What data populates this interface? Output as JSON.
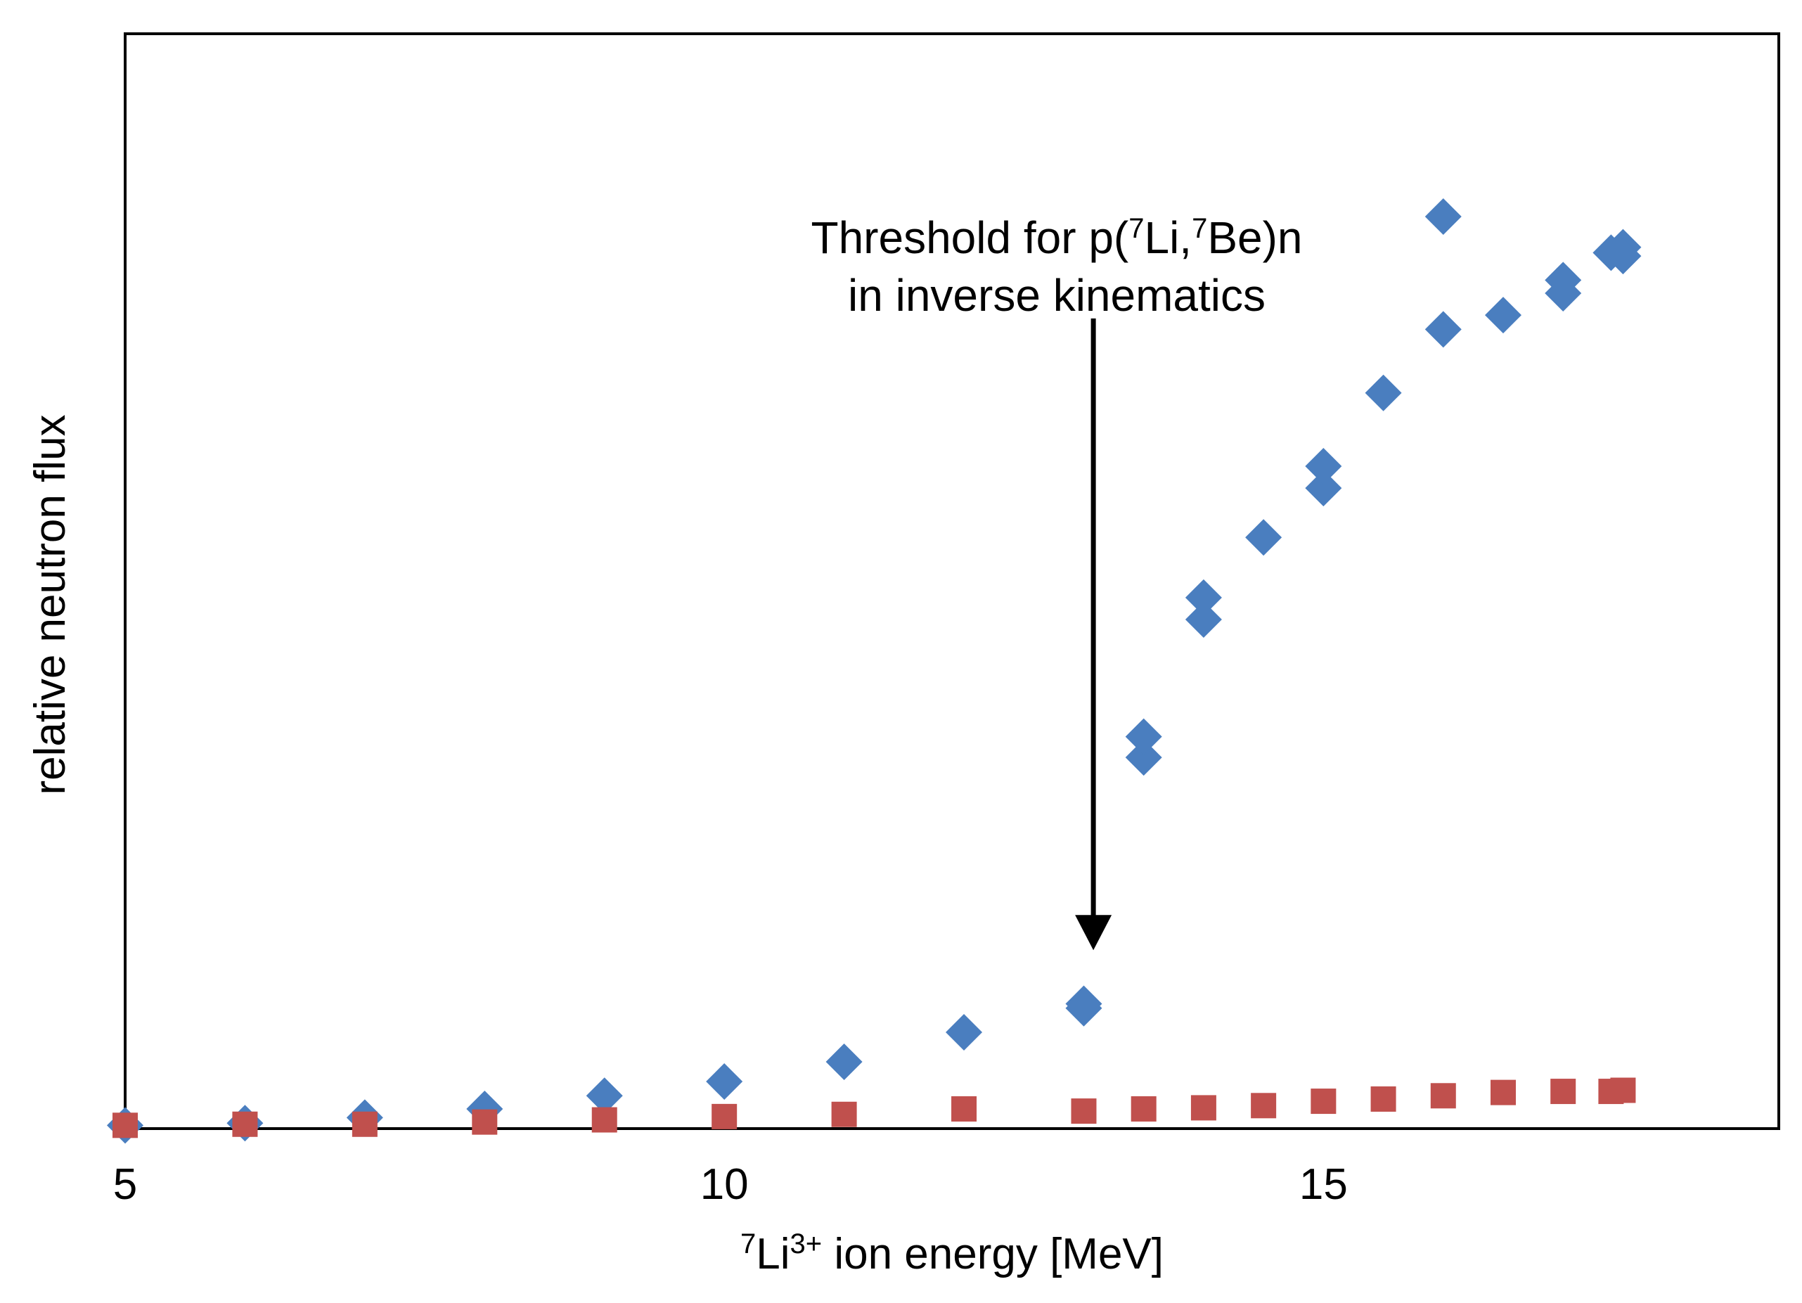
{
  "chart_data": {
    "type": "scatter",
    "title": "",
    "xlabel": {
      "pre": "7",
      "main": "Li",
      "sup": "3+",
      "post": " ion energy [MeV]"
    },
    "ylabel": "relative neutron flux",
    "xlim": [
      5,
      18.8
    ],
    "ylim": [
      0,
      1.0
    ],
    "x_ticks": [
      {
        "value": 5,
        "label": "5"
      },
      {
        "value": 10,
        "label": "10"
      },
      {
        "value": 15,
        "label": "15"
      }
    ],
    "grid": false,
    "legend": "none",
    "series": [
      {
        "marker": "diamond",
        "color": "#4a7ebf",
        "points": [
          {
            "x": 5.0,
            "y": 0.003
          },
          {
            "x": 6.0,
            "y": 0.005
          },
          {
            "x": 7.0,
            "y": 0.01
          },
          {
            "x": 8.0,
            "y": 0.018
          },
          {
            "x": 9.0,
            "y": 0.03
          },
          {
            "x": 10.0,
            "y": 0.043
          },
          {
            "x": 11.0,
            "y": 0.061
          },
          {
            "x": 12.0,
            "y": 0.088
          },
          {
            "x": 13.0,
            "y": 0.11
          },
          {
            "x": 13.0,
            "y": 0.114
          },
          {
            "x": 13.5,
            "y": 0.339
          },
          {
            "x": 13.5,
            "y": 0.358
          },
          {
            "x": 14.0,
            "y": 0.465
          },
          {
            "x": 14.0,
            "y": 0.485
          },
          {
            "x": 14.5,
            "y": 0.54
          },
          {
            "x": 15.0,
            "y": 0.585
          },
          {
            "x": 15.0,
            "y": 0.605
          },
          {
            "x": 15.5,
            "y": 0.672
          },
          {
            "x": 16.0,
            "y": 0.73
          },
          {
            "x": 16.0,
            "y": 0.833
          },
          {
            "x": 16.5,
            "y": 0.743
          },
          {
            "x": 17.0,
            "y": 0.763
          },
          {
            "x": 17.0,
            "y": 0.775
          },
          {
            "x": 17.4,
            "y": 0.8
          },
          {
            "x": 17.5,
            "y": 0.805
          },
          {
            "x": 17.5,
            "y": 0.797
          }
        ]
      },
      {
        "marker": "square",
        "color": "#c0504d",
        "points": [
          {
            "x": 5.0,
            "y": 0.003
          },
          {
            "x": 6.0,
            "y": 0.004
          },
          {
            "x": 7.0,
            "y": 0.004
          },
          {
            "x": 8.0,
            "y": 0.006
          },
          {
            "x": 9.0,
            "y": 0.008
          },
          {
            "x": 10.0,
            "y": 0.011
          },
          {
            "x": 11.0,
            "y": 0.013
          },
          {
            "x": 12.0,
            "y": 0.018
          },
          {
            "x": 13.0,
            "y": 0.016
          },
          {
            "x": 13.5,
            "y": 0.018
          },
          {
            "x": 14.0,
            "y": 0.019
          },
          {
            "x": 14.5,
            "y": 0.021
          },
          {
            "x": 15.0,
            "y": 0.025
          },
          {
            "x": 15.5,
            "y": 0.027
          },
          {
            "x": 16.0,
            "y": 0.03
          },
          {
            "x": 16.5,
            "y": 0.033
          },
          {
            "x": 17.0,
            "y": 0.034
          },
          {
            "x": 17.4,
            "y": 0.034
          },
          {
            "x": 17.5,
            "y": 0.035
          }
        ]
      }
    ],
    "annotation": {
      "line1": {
        "pre": "Threshold for p(",
        "sup1": "7",
        "mid": "Li,",
        "sup2": "7",
        "post": "Be)n"
      },
      "line2": "in inverse kinematics",
      "arrow": {
        "x": 13.08,
        "y_start": 0.74,
        "y_end": 0.163
      }
    }
  }
}
